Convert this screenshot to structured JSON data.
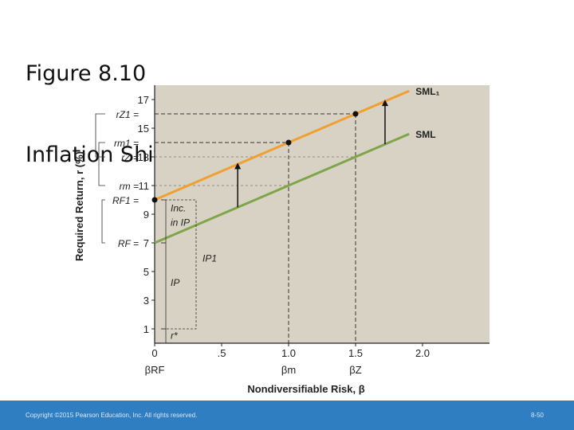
{
  "slide": {
    "title_line1": "Figure 8.10",
    "title_line2": "Inflation Shifts SML",
    "copyright": "Copyright ©2015 Pearson Education, Inc. All rights reserved.",
    "page": "8-50"
  },
  "colors": {
    "plot_bg": "#d8d2c4",
    "sml1": "#f0a030",
    "sml": "#7fa54a",
    "title_text": "#111111",
    "footer": "#2f7ec2"
  },
  "chart_data": {
    "type": "line",
    "xlabel": "Nondiversifiable Risk, β",
    "ylabel": "Required Return, r (%)",
    "xlim": [
      0,
      2.5
    ],
    "ylim": [
      0,
      18
    ],
    "x_ticks": [
      {
        "v": 0,
        "label": "0"
      },
      {
        "v": 0.5,
        "label": ".5"
      },
      {
        "v": 1.0,
        "label": "1.0"
      },
      {
        "v": 1.5,
        "label": "1.5"
      },
      {
        "v": 2.0,
        "label": "2.0"
      }
    ],
    "y_ticks": [
      1,
      3,
      5,
      7,
      9,
      11,
      13,
      15,
      17
    ],
    "series": [
      {
        "name": "SML₁",
        "x": [
          0,
          1.0,
          1.5,
          2.0
        ],
        "values": [
          10,
          14,
          16,
          18
        ]
      },
      {
        "name": "SML",
        "x": [
          0,
          1.0,
          1.5,
          2.0
        ],
        "values": [
          7,
          11,
          13,
          15
        ]
      }
    ],
    "points": [
      {
        "x": 0,
        "y": 10
      },
      {
        "x": 1.0,
        "y": 14
      },
      {
        "x": 1.5,
        "y": 16
      }
    ],
    "y_side_labels": [
      {
        "label": "rZ1 =",
        "y": 16
      },
      {
        "label": "rm1 =",
        "y": 14
      },
      {
        "label": "rZ =",
        "y": 13
      },
      {
        "label": "rm =",
        "y": 11
      },
      {
        "label": "RF1 =",
        "y": 10
      },
      {
        "label": "RF =",
        "y": 7
      }
    ],
    "x_below_labels": [
      {
        "label": "βRF",
        "x": 0
      },
      {
        "label": "βm",
        "x": 1.0
      },
      {
        "label": "βZ",
        "x": 1.5
      }
    ],
    "annotations": [
      {
        "text": "Inc.",
        "group": "inc_ip"
      },
      {
        "text": "in IP",
        "group": "inc_ip"
      },
      {
        "text": "IP1",
        "group": "ip1"
      },
      {
        "text": "IP",
        "group": "ip"
      },
      {
        "text": "r*",
        "group": "rstar"
      }
    ],
    "grid": false,
    "legend": "line-end labels"
  }
}
